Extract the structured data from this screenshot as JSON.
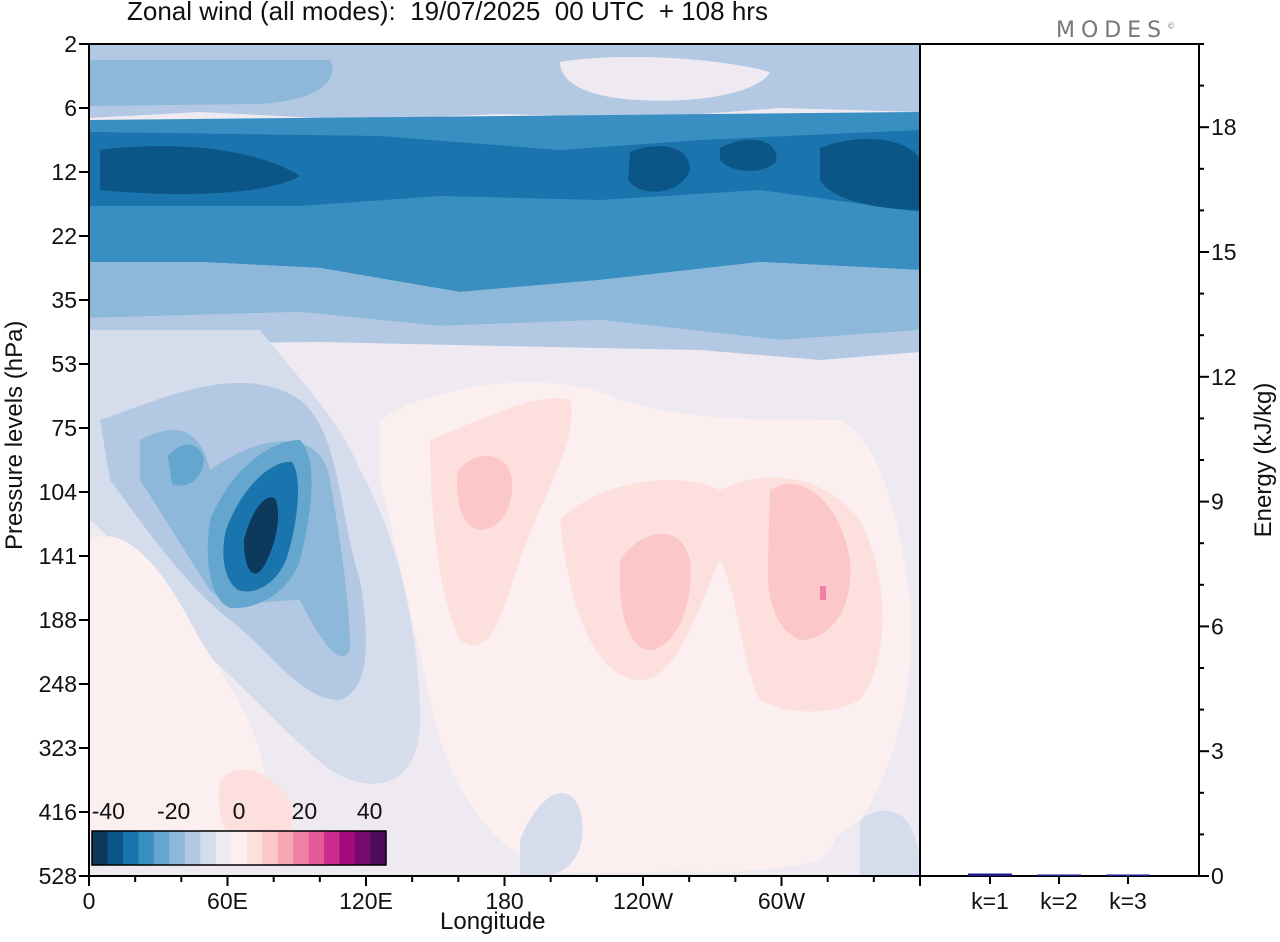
{
  "title": "Zonal wind (all modes):  19/07/2025  00 UTC  + 108 hrs",
  "logo": "MODES",
  "logo_mark": "©",
  "chart_data": [
    {
      "type": "heatmap",
      "title": "Zonal wind (all modes):  19/07/2025  00 UTC  + 108 hrs",
      "xlabel": "Longitude",
      "ylabel": "Pressure levels (hPa)",
      "x_ticks": [
        "0",
        "60E",
        "120E",
        "180",
        "120W",
        "60W"
      ],
      "y_ticks": [
        "2",
        "6",
        "12",
        "22",
        "35",
        "53",
        "75",
        "104",
        "141",
        "188",
        "248",
        "323",
        "416",
        "528"
      ],
      "colorbar": {
        "tick_labels": [
          "-40",
          "-20",
          "0",
          "20",
          "40"
        ],
        "range": [
          -45,
          45
        ],
        "colors": [
          "#0d3a5c",
          "#0c5687",
          "#1a74ad",
          "#3a8fc2",
          "#65a6cf",
          "#8db8da",
          "#b3c8e2",
          "#d5dcec",
          "#efeaf2",
          "#fbefef",
          "#fde0de",
          "#fbc7c8",
          "#f6a7b5",
          "#ef80a4",
          "#e45a98",
          "#cb2b8d",
          "#a3097c",
          "#730c6b",
          "#4b0d5c"
        ]
      },
      "regions": [
        {
          "name": "upper-stratosphere-band",
          "value": -12
        },
        {
          "name": "stratospheric-jet-core",
          "value": -35
        },
        {
          "name": "lower-stratosphere-band",
          "value": -22
        },
        {
          "name": "transition-layer",
          "value": -8
        },
        {
          "name": "easterly-core-60E",
          "value": -40
        },
        {
          "name": "westerly-180",
          "value": 12
        },
        {
          "name": "westerly-120W",
          "value": 14
        },
        {
          "name": "westerly-60W",
          "value": 15
        }
      ]
    },
    {
      "type": "bar",
      "xlabel": "",
      "ylabel": "Energy (kJ/kg)",
      "categories": [
        "k=1",
        "k=2",
        "k=3"
      ],
      "values": [
        0.06,
        0.02,
        0.01
      ],
      "ylim": [
        0,
        20
      ],
      "y_ticks": [
        "0",
        "3",
        "6",
        "9",
        "12",
        "15",
        "18"
      ],
      "bar_color": "#1a1a8c"
    }
  ]
}
